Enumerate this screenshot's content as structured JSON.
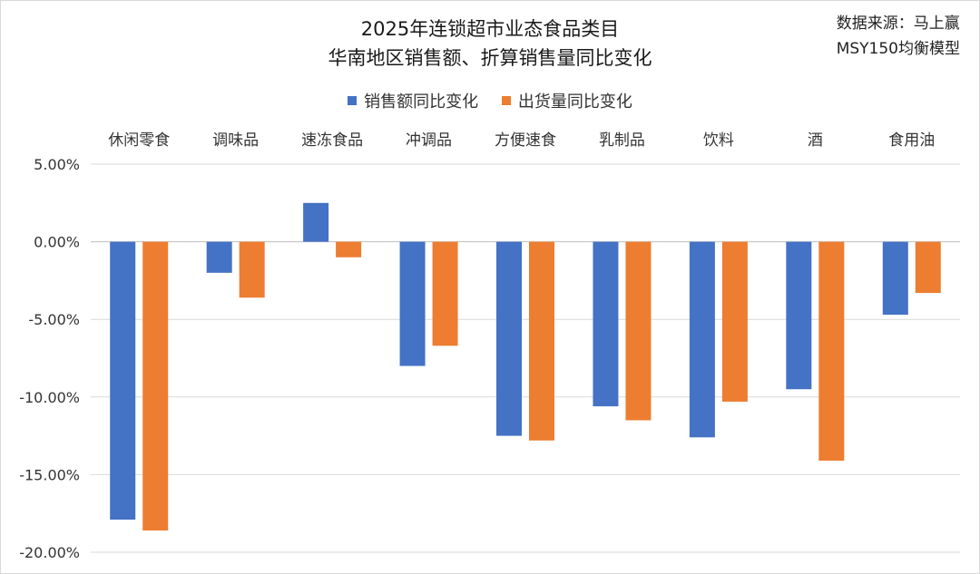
{
  "title_line1": "2025年连锁超市业态食品类目",
  "title_line2": "华南地区销售额、折算销售量同比变化",
  "source_line1": "数据来源：马上赢",
  "source_line2": "MSY150均衡模型",
  "chart_data": {
    "type": "bar",
    "title": "2025年连锁超市业态食品类目 华南地区销售额、折算销售量同比变化",
    "categories": [
      "休闲零食",
      "调味品",
      "速冻食品",
      "冲调品",
      "方便速食",
      "乳制品",
      "饮料",
      "酒",
      "食用油"
    ],
    "series": [
      {
        "name": "销售额同比变化",
        "color": "#4472C4",
        "values": [
          -17.9,
          -2.0,
          2.5,
          -8.0,
          -12.5,
          -10.6,
          -12.6,
          -9.5,
          -4.7
        ]
      },
      {
        "name": "出货量同比变化",
        "color": "#ED7D31",
        "values": [
          -18.6,
          -3.6,
          -1.0,
          -6.7,
          -12.8,
          -11.5,
          -10.3,
          -14.1,
          -3.3
        ]
      }
    ],
    "ylim": [
      -20,
      5
    ],
    "yticks": [
      5,
      0,
      -5,
      -10,
      -15,
      -20
    ],
    "ytick_labels": [
      "5.00%",
      "0.00%",
      "-5.00%",
      "-10.00%",
      "-15.00%",
      "-20.00%"
    ],
    "category_axis_position": "top",
    "legend_position": "top",
    "grid": true
  }
}
